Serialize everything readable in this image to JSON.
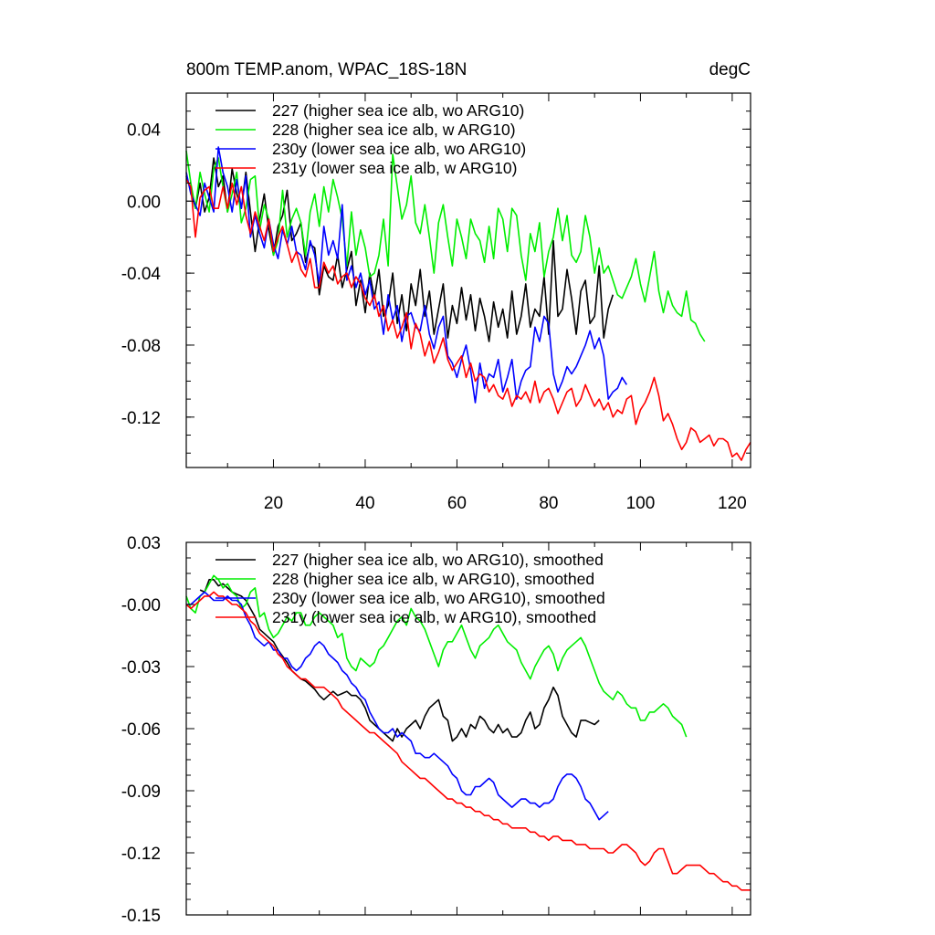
{
  "chart_data": [
    {
      "type": "line",
      "title": "800m TEMP.anom, WPAC_18S-18N",
      "units": "degC",
      "xlim": [
        1,
        124
      ],
      "ylim": [
        -0.148,
        0.06
      ],
      "xticks": [
        20,
        40,
        60,
        80,
        100,
        120
      ],
      "xtick_labels": [
        "20",
        "40",
        "60",
        "80",
        "100",
        "120"
      ],
      "yticks": [
        0.04,
        0.0,
        -0.04,
        -0.08,
        -0.12
      ],
      "ytick_labels": [
        "0.04",
        "0.00",
        "-0.04",
        "-0.08",
        "-0.12"
      ],
      "legend_position": "top-left",
      "series": [
        {
          "name": "227 (higher sea ice alb, wo ARG10)",
          "color": "#000000",
          "x_start": 1,
          "values": [
            0.014,
            0.006,
            -0.004,
            0.01,
            -0.006,
            0.002,
            0.024,
            0.008,
            0.014,
            -0.006,
            0.018,
            0.004,
            -0.004,
            0.016,
            -0.006,
            -0.028,
            -0.01,
            0.004,
            -0.016,
            -0.03,
            -0.014,
            -0.008,
            0.006,
            -0.022,
            -0.018,
            -0.012,
            -0.034,
            -0.024,
            -0.026,
            -0.052,
            -0.036,
            -0.042,
            -0.044,
            -0.03,
            -0.048,
            -0.038,
            -0.028,
            -0.058,
            -0.044,
            -0.062,
            -0.04,
            -0.054,
            -0.038,
            -0.064,
            -0.058,
            -0.04,
            -0.068,
            -0.052,
            -0.072,
            -0.046,
            -0.058,
            -0.038,
            -0.064,
            -0.05,
            -0.074,
            -0.06,
            -0.046,
            -0.076,
            -0.058,
            -0.068,
            -0.048,
            -0.066,
            -0.052,
            -0.072,
            -0.054,
            -0.064,
            -0.078,
            -0.056,
            -0.07,
            -0.06,
            -0.076,
            -0.05,
            -0.074,
            -0.064,
            -0.046,
            -0.07,
            -0.06,
            -0.064,
            -0.042,
            -0.074,
            -0.022,
            -0.064,
            -0.06,
            -0.038,
            -0.054,
            -0.074,
            -0.05,
            -0.044,
            -0.068,
            -0.064,
            -0.036,
            -0.076,
            -0.06,
            -0.052
          ]
        },
        {
          "name": "228 (higher sea ice alb, w ARG10)",
          "color": "#00ee00",
          "x_start": 1,
          "values": [
            0.028,
            0.01,
            -0.004,
            0.016,
            0.004,
            -0.006,
            0.018,
            0.024,
            0.008,
            -0.006,
            0.004,
            0.016,
            -0.012,
            -0.004,
            0.012,
            0.014,
            -0.016,
            -0.002,
            -0.01,
            -0.03,
            -0.022,
            0.006,
            -0.02,
            -0.01,
            -0.004,
            -0.012,
            -0.03,
            -0.006,
            0.004,
            -0.014,
            0.008,
            -0.006,
            0.012,
            0.002,
            -0.01,
            -0.036,
            -0.006,
            -0.03,
            -0.016,
            -0.026,
            -0.042,
            -0.04,
            -0.03,
            -0.01,
            -0.036,
            0.026,
            0.008,
            -0.01,
            -0.002,
            0.014,
            -0.012,
            -0.018,
            -0.002,
            -0.02,
            -0.04,
            -0.012,
            -0.002,
            -0.02,
            -0.036,
            -0.01,
            -0.02,
            -0.032,
            -0.01,
            -0.018,
            -0.022,
            -0.034,
            -0.014,
            -0.032,
            -0.004,
            -0.01,
            -0.028,
            -0.004,
            -0.008,
            -0.03,
            -0.044,
            -0.018,
            -0.028,
            -0.012,
            -0.042,
            -0.028,
            -0.02,
            -0.004,
            -0.022,
            -0.008,
            -0.03,
            -0.034,
            -0.028,
            -0.008,
            -0.02,
            -0.04,
            -0.026,
            -0.04,
            -0.036,
            -0.044,
            -0.052,
            -0.054,
            -0.048,
            -0.042,
            -0.032,
            -0.046,
            -0.056,
            -0.042,
            -0.028,
            -0.05,
            -0.062,
            -0.05,
            -0.058,
            -0.062,
            -0.064,
            -0.05,
            -0.066,
            -0.068,
            -0.074,
            -0.078
          ]
        },
        {
          "name": "230y (lower sea ice alb, wo ARG10)",
          "color": "#0000ff",
          "x_start": 1,
          "values": [
            0.016,
            0.004,
            -0.002,
            -0.008,
            0.01,
            0.002,
            -0.006,
            0.03,
            0.016,
            0.008,
            -0.006,
            0.012,
            -0.004,
            0.014,
            -0.02,
            -0.008,
            -0.018,
            -0.026,
            -0.01,
            -0.024,
            -0.032,
            -0.016,
            -0.024,
            -0.014,
            -0.028,
            -0.03,
            -0.038,
            -0.022,
            -0.03,
            -0.046,
            -0.014,
            -0.03,
            -0.022,
            -0.032,
            -0.002,
            -0.044,
            -0.036,
            -0.048,
            -0.04,
            -0.052,
            -0.044,
            -0.06,
            -0.056,
            -0.074,
            -0.052,
            -0.066,
            -0.058,
            -0.078,
            -0.064,
            -0.062,
            -0.07,
            -0.072,
            -0.058,
            -0.074,
            -0.082,
            -0.07,
            -0.064,
            -0.086,
            -0.09,
            -0.098,
            -0.088,
            -0.08,
            -0.094,
            -0.112,
            -0.09,
            -0.104,
            -0.096,
            -0.098,
            -0.088,
            -0.106,
            -0.098,
            -0.088,
            -0.11,
            -0.1,
            -0.094,
            -0.092,
            -0.07,
            -0.078,
            -0.064,
            -0.068,
            -0.096,
            -0.106,
            -0.1,
            -0.092,
            -0.096,
            -0.092,
            -0.086,
            -0.08,
            -0.072,
            -0.082,
            -0.076,
            -0.086,
            -0.11,
            -0.106,
            -0.104,
            -0.098,
            -0.102
          ]
        },
        {
          "name": "231y (lower sea ice alb, w ARG10)",
          "color": "#ff0000",
          "x_start": 1,
          "values": [
            0.012,
            0.008,
            -0.02,
            0.002,
            0.006,
            0.008,
            -0.004,
            -0.004,
            0.008,
            -0.004,
            0.01,
            -0.002,
            0.008,
            -0.008,
            -0.018,
            -0.006,
            -0.014,
            -0.022,
            -0.01,
            -0.028,
            -0.02,
            -0.014,
            -0.024,
            -0.034,
            -0.028,
            -0.038,
            -0.042,
            -0.032,
            -0.048,
            -0.048,
            -0.034,
            -0.04,
            -0.036,
            -0.046,
            -0.042,
            -0.04,
            -0.048,
            -0.042,
            -0.046,
            -0.054,
            -0.058,
            -0.052,
            -0.064,
            -0.058,
            -0.072,
            -0.066,
            -0.076,
            -0.07,
            -0.062,
            -0.082,
            -0.068,
            -0.074,
            -0.086,
            -0.078,
            -0.09,
            -0.084,
            -0.076,
            -0.088,
            -0.094,
            -0.09,
            -0.086,
            -0.098,
            -0.09,
            -0.1,
            -0.096,
            -0.098,
            -0.106,
            -0.102,
            -0.108,
            -0.11,
            -0.104,
            -0.114,
            -0.108,
            -0.11,
            -0.106,
            -0.112,
            -0.1,
            -0.112,
            -0.106,
            -0.104,
            -0.11,
            -0.118,
            -0.112,
            -0.106,
            -0.104,
            -0.114,
            -0.11,
            -0.102,
            -0.108,
            -0.114,
            -0.11,
            -0.116,
            -0.112,
            -0.12,
            -0.116,
            -0.118,
            -0.11,
            -0.108,
            -0.124,
            -0.116,
            -0.112,
            -0.106,
            -0.098,
            -0.108,
            -0.122,
            -0.118,
            -0.124,
            -0.132,
            -0.138,
            -0.134,
            -0.126,
            -0.128,
            -0.134,
            -0.132,
            -0.13,
            -0.136,
            -0.132,
            -0.132,
            -0.134,
            -0.142,
            -0.14,
            -0.144,
            -0.138,
            -0.134
          ]
        }
      ]
    },
    {
      "type": "line",
      "title": "",
      "xlim": [
        1,
        124
      ],
      "ylim": [
        -0.15,
        0.03
      ],
      "xticks": [
        20,
        40,
        60,
        80,
        100,
        120
      ],
      "yticks": [
        0.03,
        0.0,
        -0.03,
        -0.06,
        -0.09,
        -0.12,
        -0.15
      ],
      "ytick_labels": [
        "0.03",
        "-0.00",
        "-0.03",
        "-0.06",
        "-0.09",
        "-0.12",
        "-0.15"
      ],
      "legend_position": "top-left",
      "series": [
        {
          "name": "227 (higher sea ice alb, wo ARG10), smoothed",
          "color": "#000000",
          "x_start": 4,
          "values": [
            0.007,
            0.006,
            0.012,
            0.012,
            0.009,
            0.01,
            0.008,
            0.006,
            0.005,
            0.004,
            0.002,
            -0.002,
            -0.006,
            -0.012,
            -0.014,
            -0.016,
            -0.018,
            -0.022,
            -0.025,
            -0.028,
            -0.032,
            -0.034,
            -0.036,
            -0.037,
            -0.039,
            -0.041,
            -0.044,
            -0.046,
            -0.044,
            -0.042,
            -0.044,
            -0.043,
            -0.042,
            -0.044,
            -0.044,
            -0.046,
            -0.05,
            -0.056,
            -0.058,
            -0.06,
            -0.062,
            -0.064,
            -0.066,
            -0.06,
            -0.064,
            -0.06,
            -0.058,
            -0.056,
            -0.06,
            -0.054,
            -0.05,
            -0.048,
            -0.046,
            -0.054,
            -0.056,
            -0.066,
            -0.064,
            -0.06,
            -0.064,
            -0.058,
            -0.06,
            -0.054,
            -0.056,
            -0.06,
            -0.062,
            -0.058,
            -0.062,
            -0.06,
            -0.064,
            -0.064,
            -0.062,
            -0.056,
            -0.052,
            -0.06,
            -0.058,
            -0.05,
            -0.046,
            -0.04,
            -0.044,
            -0.054,
            -0.058,
            -0.062,
            -0.064,
            -0.056,
            -0.056,
            -0.057,
            -0.058,
            -0.056
          ]
        },
        {
          "name": "228 (higher sea ice alb, w ARG10), smoothed",
          "color": "#00ee00",
          "x_start": 1,
          "values": [
            0.004,
            -0.002,
            -0.004,
            0.004,
            0.006,
            0.01,
            0.014,
            0.012,
            0.008,
            0.01,
            0.006,
            0.004,
            -0.002,
            0.0,
            0.006,
            0.008,
            -0.006,
            -0.004,
            -0.012,
            -0.016,
            -0.014,
            -0.01,
            -0.006,
            -0.008,
            -0.004,
            -0.004,
            -0.01,
            -0.01,
            -0.006,
            -0.004,
            -0.006,
            -0.008,
            -0.01,
            -0.016,
            -0.014,
            -0.026,
            -0.03,
            -0.032,
            -0.026,
            -0.028,
            -0.03,
            -0.028,
            -0.022,
            -0.02,
            -0.016,
            -0.012,
            -0.008,
            -0.006,
            -0.01,
            -0.002,
            -0.006,
            -0.008,
            -0.012,
            -0.018,
            -0.024,
            -0.03,
            -0.022,
            -0.018,
            -0.018,
            -0.014,
            -0.01,
            -0.016,
            -0.022,
            -0.026,
            -0.02,
            -0.018,
            -0.016,
            -0.012,
            -0.01,
            -0.014,
            -0.018,
            -0.02,
            -0.022,
            -0.028,
            -0.032,
            -0.036,
            -0.03,
            -0.026,
            -0.022,
            -0.02,
            -0.024,
            -0.032,
            -0.026,
            -0.022,
            -0.02,
            -0.018,
            -0.016,
            -0.02,
            -0.026,
            -0.032,
            -0.038,
            -0.042,
            -0.044,
            -0.046,
            -0.042,
            -0.044,
            -0.048,
            -0.05,
            -0.05,
            -0.056,
            -0.056,
            -0.052,
            -0.052,
            -0.05,
            -0.048,
            -0.05,
            -0.054,
            -0.056,
            -0.058,
            -0.064
          ]
        },
        {
          "name": "230y (lower sea ice alb, wo ARG10), smoothed",
          "color": "#0000ff",
          "x_start": 1,
          "values": [
            0.0,
            0.0,
            0.002,
            0.004,
            0.006,
            0.004,
            0.002,
            0.002,
            0.002,
            0.004,
            0.002,
            0.002,
            0.0,
            -0.006,
            -0.01,
            -0.016,
            -0.018,
            -0.02,
            -0.018,
            -0.022,
            -0.022,
            -0.026,
            -0.026,
            -0.03,
            -0.032,
            -0.03,
            -0.026,
            -0.024,
            -0.02,
            -0.018,
            -0.02,
            -0.024,
            -0.026,
            -0.028,
            -0.032,
            -0.034,
            -0.038,
            -0.04,
            -0.044,
            -0.046,
            -0.052,
            -0.056,
            -0.06,
            -0.062,
            -0.062,
            -0.06,
            -0.064,
            -0.062,
            -0.064,
            -0.066,
            -0.072,
            -0.072,
            -0.074,
            -0.074,
            -0.072,
            -0.074,
            -0.076,
            -0.078,
            -0.082,
            -0.084,
            -0.09,
            -0.092,
            -0.092,
            -0.088,
            -0.088,
            -0.086,
            -0.084,
            -0.086,
            -0.092,
            -0.094,
            -0.096,
            -0.098,
            -0.096,
            -0.094,
            -0.094,
            -0.096,
            -0.096,
            -0.098,
            -0.096,
            -0.096,
            -0.094,
            -0.088,
            -0.084,
            -0.082,
            -0.082,
            -0.084,
            -0.088,
            -0.094,
            -0.096,
            -0.1,
            -0.104,
            -0.102,
            -0.1
          ]
        },
        {
          "name": "231y (lower sea ice alb, w ARG10), smoothed",
          "color": "#ff0000",
          "x_start": 1,
          "values": [
            0.0,
            -0.002,
            0.0,
            0.002,
            0.004,
            0.004,
            0.006,
            0.004,
            0.004,
            0.002,
            0.0,
            0.0,
            -0.002,
            -0.004,
            -0.008,
            -0.01,
            -0.014,
            -0.016,
            -0.018,
            -0.02,
            -0.024,
            -0.026,
            -0.03,
            -0.032,
            -0.034,
            -0.036,
            -0.036,
            -0.038,
            -0.04,
            -0.04,
            -0.04,
            -0.042,
            -0.044,
            -0.046,
            -0.05,
            -0.052,
            -0.054,
            -0.056,
            -0.058,
            -0.06,
            -0.062,
            -0.062,
            -0.064,
            -0.066,
            -0.068,
            -0.07,
            -0.072,
            -0.076,
            -0.078,
            -0.08,
            -0.082,
            -0.084,
            -0.084,
            -0.086,
            -0.088,
            -0.09,
            -0.092,
            -0.094,
            -0.094,
            -0.096,
            -0.096,
            -0.098,
            -0.098,
            -0.1,
            -0.1,
            -0.102,
            -0.102,
            -0.104,
            -0.104,
            -0.106,
            -0.106,
            -0.108,
            -0.108,
            -0.108,
            -0.108,
            -0.11,
            -0.11,
            -0.112,
            -0.112,
            -0.114,
            -0.112,
            -0.112,
            -0.114,
            -0.114,
            -0.114,
            -0.116,
            -0.116,
            -0.116,
            -0.118,
            -0.118,
            -0.118,
            -0.118,
            -0.12,
            -0.12,
            -0.118,
            -0.116,
            -0.116,
            -0.118,
            -0.12,
            -0.124,
            -0.126,
            -0.124,
            -0.12,
            -0.118,
            -0.118,
            -0.124,
            -0.13,
            -0.13,
            -0.128,
            -0.126,
            -0.126,
            -0.126,
            -0.126,
            -0.128,
            -0.13,
            -0.13,
            -0.132,
            -0.134,
            -0.134,
            -0.136,
            -0.136,
            -0.138,
            -0.138,
            -0.138
          ]
        }
      ]
    }
  ]
}
